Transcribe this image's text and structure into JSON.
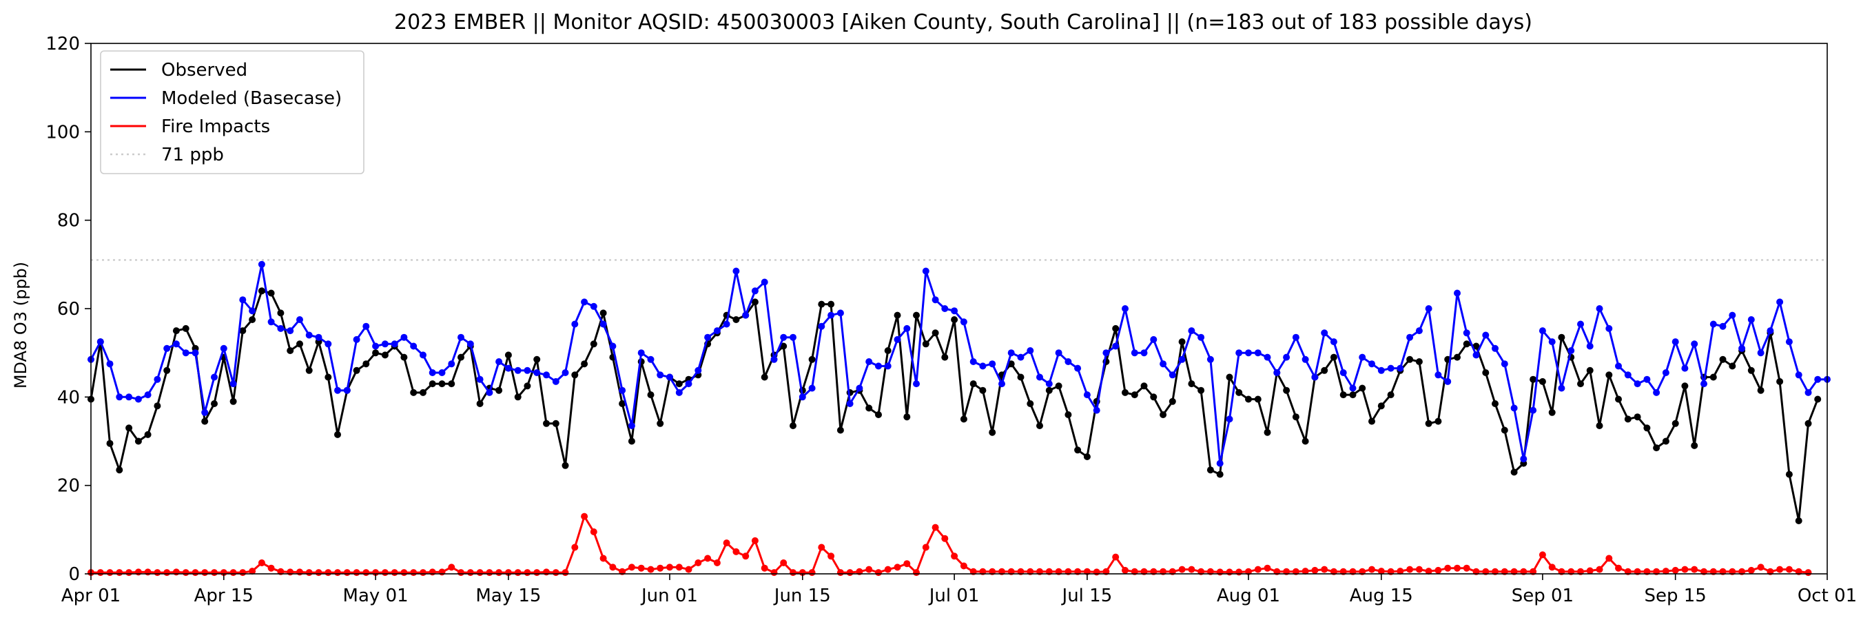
{
  "chart_data": {
    "type": "line",
    "title": "2023 EMBER || Monitor AQSID: 450030003 [Aiken County, South Carolina] || (n=183 out of 183 possible days)",
    "ylabel": "MDA8 O3 (ppb)",
    "xlabel": "",
    "x_start": "2023-04-01",
    "x_end": "2023-10-01",
    "xlim": [
      "2023-04-01",
      "2023-10-01"
    ],
    "ylim": [
      0,
      120
    ],
    "yticks": [
      0,
      20,
      40,
      60,
      80,
      100,
      120
    ],
    "xticks": [
      {
        "date": "2023-04-01",
        "label": "Apr 01"
      },
      {
        "date": "2023-04-15",
        "label": "Apr 15"
      },
      {
        "date": "2023-05-01",
        "label": "May 01"
      },
      {
        "date": "2023-05-15",
        "label": "May 15"
      },
      {
        "date": "2023-06-01",
        "label": "Jun 01"
      },
      {
        "date": "2023-06-15",
        "label": "Jun 15"
      },
      {
        "date": "2023-07-01",
        "label": "Jul 01"
      },
      {
        "date": "2023-07-15",
        "label": "Jul 15"
      },
      {
        "date": "2023-08-01",
        "label": "Aug 01"
      },
      {
        "date": "2023-08-15",
        "label": "Aug 15"
      },
      {
        "date": "2023-09-01",
        "label": "Sep 01"
      },
      {
        "date": "2023-09-15",
        "label": "Sep 15"
      },
      {
        "date": "2023-10-01",
        "label": "Oct 01"
      }
    ],
    "grid": false,
    "legend_position": "top-left",
    "threshold": {
      "value": 71,
      "label": "71 ppb",
      "color": "#cccccc"
    },
    "series": [
      {
        "name": "Observed",
        "color": "#000000",
        "values": [
          39.5,
          52.5,
          29.5,
          23.5,
          33,
          30,
          31.5,
          38,
          46,
          55,
          55.5,
          51,
          34.5,
          38.5,
          49,
          39,
          55,
          57.5,
          64,
          63.5,
          59,
          50.5,
          52,
          46,
          52.5,
          44.5,
          31.5,
          41.5,
          46,
          47.5,
          50,
          49.5,
          51.5,
          49,
          41,
          41,
          43,
          43,
          43,
          49,
          51.5,
          38.5,
          42,
          41.5,
          49.5,
          40,
          42.5,
          48.5,
          34,
          34,
          24.5,
          45,
          47.5,
          52,
          59,
          49,
          38.5,
          30,
          48,
          40.5,
          34,
          44.5,
          43,
          44,
          45,
          52,
          54.5,
          58.5,
          57.5,
          58.5,
          61.5,
          44.5,
          49.5,
          51.5,
          33.5,
          41.5,
          48.5,
          61,
          61,
          32.5,
          41,
          41.5,
          37.5,
          36,
          50.5,
          58.5,
          35.5,
          58.5,
          52,
          54.5,
          49,
          57.5,
          35,
          43,
          41.5,
          32,
          45,
          47.5,
          44.5,
          38.5,
          33.5,
          41.5,
          42.5,
          36,
          28,
          26.5,
          39,
          48,
          55.5,
          41,
          40.5,
          42.5,
          40,
          36,
          39,
          52.5,
          43,
          41.5,
          23.5,
          22.5,
          44.5,
          41,
          39.5,
          39.5,
          32,
          45.5,
          41.5,
          35.5,
          30,
          44.5,
          46,
          49,
          40.5,
          40.5,
          42,
          34.5,
          38,
          40.5,
          46,
          48.5,
          48,
          34,
          34.5,
          48.5,
          49,
          52,
          51.5,
          45.5,
          38.5,
          32.5,
          23,
          25,
          44,
          43.5,
          36.5,
          53.5,
          49,
          43,
          46,
          33.5,
          45,
          39.5,
          35,
          35.5,
          33,
          28.5,
          30,
          34,
          42.5,
          29,
          44.5,
          44.5,
          48.5,
          47,
          50.5,
          46,
          41.5,
          54.5,
          43.5,
          22.5,
          12,
          34,
          39.5
        ]
      },
      {
        "name": "Modeled (Basecase)",
        "color": "#0000ff",
        "values": [
          48.5,
          52.5,
          47.5,
          40,
          40,
          39.5,
          40.5,
          44,
          51,
          52,
          50,
          50,
          36.5,
          44.5,
          51,
          43,
          62,
          59.5,
          70,
          57,
          55.5,
          55,
          57.5,
          54,
          53.5,
          52,
          41.5,
          41.5,
          53,
          56,
          51.5,
          52,
          52,
          53.5,
          51.5,
          49.5,
          45.5,
          45.5,
          47.5,
          53.5,
          52,
          44,
          41,
          48,
          46.5,
          46,
          46,
          45.5,
          45,
          43.5,
          45.5,
          56.5,
          61.5,
          60.5,
          56.5,
          51.5,
          41.5,
          33.5,
          50,
          48.5,
          45,
          44.5,
          41,
          43,
          46,
          53.5,
          55,
          56.5,
          68.5,
          58.5,
          64,
          66,
          48.5,
          53.5,
          53.5,
          40,
          42,
          56,
          58.5,
          59,
          38.5,
          42,
          48,
          47,
          47,
          53,
          55.5,
          43,
          68.5,
          62,
          60,
          59.5,
          57,
          48,
          47,
          47.5,
          43,
          50,
          49,
          50.5,
          44.5,
          43,
          50,
          48,
          46.5,
          40.5,
          37,
          50,
          51.5,
          60,
          50,
          50,
          53,
          47.5,
          45,
          48.5,
          55,
          53.5,
          48.5,
          25,
          35,
          50,
          50,
          50,
          49,
          45.5,
          49,
          53.5,
          48.5,
          44.5,
          54.5,
          52.5,
          45.5,
          42,
          49,
          47.5,
          46,
          46.5,
          46.5,
          53.5,
          55,
          60,
          45,
          43.5,
          63.5,
          54.5,
          49.5,
          54,
          51,
          47.5,
          37.5,
          26,
          37,
          55,
          52.5,
          42,
          50.5,
          56.5,
          51.5,
          60,
          55.5,
          47,
          45,
          43,
          44,
          41,
          45.5,
          52.5,
          46.5,
          52,
          43,
          56.5,
          56,
          58.5,
          51,
          57.5,
          50,
          55,
          61.5,
          52.5,
          45,
          41,
          44,
          44
        ]
      },
      {
        "name": "Fire Impacts",
        "color": "#ff0000",
        "values": [
          0.3,
          0.3,
          0.3,
          0.3,
          0.3,
          0.4,
          0.4,
          0.3,
          0.3,
          0.4,
          0.3,
          0.3,
          0.3,
          0.3,
          0.3,
          0.3,
          0.3,
          0.6,
          2.5,
          1.3,
          0.5,
          0.4,
          0.4,
          0.3,
          0.3,
          0.3,
          0.3,
          0.3,
          0.3,
          0.3,
          0.3,
          0.3,
          0.3,
          0.3,
          0.3,
          0.3,
          0.4,
          0.4,
          1.5,
          0.3,
          0.3,
          0.3,
          0.3,
          0.3,
          0.3,
          0.3,
          0.3,
          0.3,
          0.4,
          0.3,
          0.3,
          6,
          13,
          9.5,
          3.5,
          1.5,
          0.5,
          1.5,
          1.3,
          1,
          1.3,
          1.5,
          1.5,
          1,
          2.5,
          3.5,
          2.5,
          7,
          5,
          4,
          7.5,
          1.3,
          0.3,
          2.5,
          0.3,
          0.3,
          0.3,
          6,
          4,
          0.3,
          0.3,
          0.5,
          1,
          0.3,
          1,
          1.5,
          2.3,
          0.3,
          6,
          10.5,
          8,
          4,
          1.8,
          0.5,
          0.5,
          0.5,
          0.5,
          0.5,
          0.5,
          0.5,
          0.5,
          0.5,
          0.5,
          0.5,
          0.5,
          0.5,
          0.4,
          0.5,
          3.8,
          0.8,
          0.5,
          0.5,
          0.5,
          0.5,
          0.5,
          1,
          1,
          0.5,
          0.5,
          0.4,
          0.4,
          0.4,
          0.5,
          1,
          1.3,
          0.5,
          0.5,
          0.5,
          0.6,
          0.8,
          1,
          0.5,
          0.5,
          0.5,
          0.5,
          1,
          0.6,
          0.5,
          0.6,
          1,
          1,
          0.6,
          0.8,
          1.3,
          1.3,
          1.3,
          0.5,
          0.5,
          0.5,
          0.5,
          0.5,
          0.5,
          0.5,
          4.3,
          1.5,
          0.5,
          0.5,
          0.5,
          0.7,
          1,
          3.5,
          1.3,
          0.5,
          0.5,
          0.5,
          0.5,
          0.6,
          0.8,
          1,
          1,
          0.5,
          0.5,
          0.5,
          0.5,
          0.5,
          0.8,
          1.5,
          0.5,
          1,
          1,
          0.5,
          0.3
        ]
      }
    ]
  }
}
